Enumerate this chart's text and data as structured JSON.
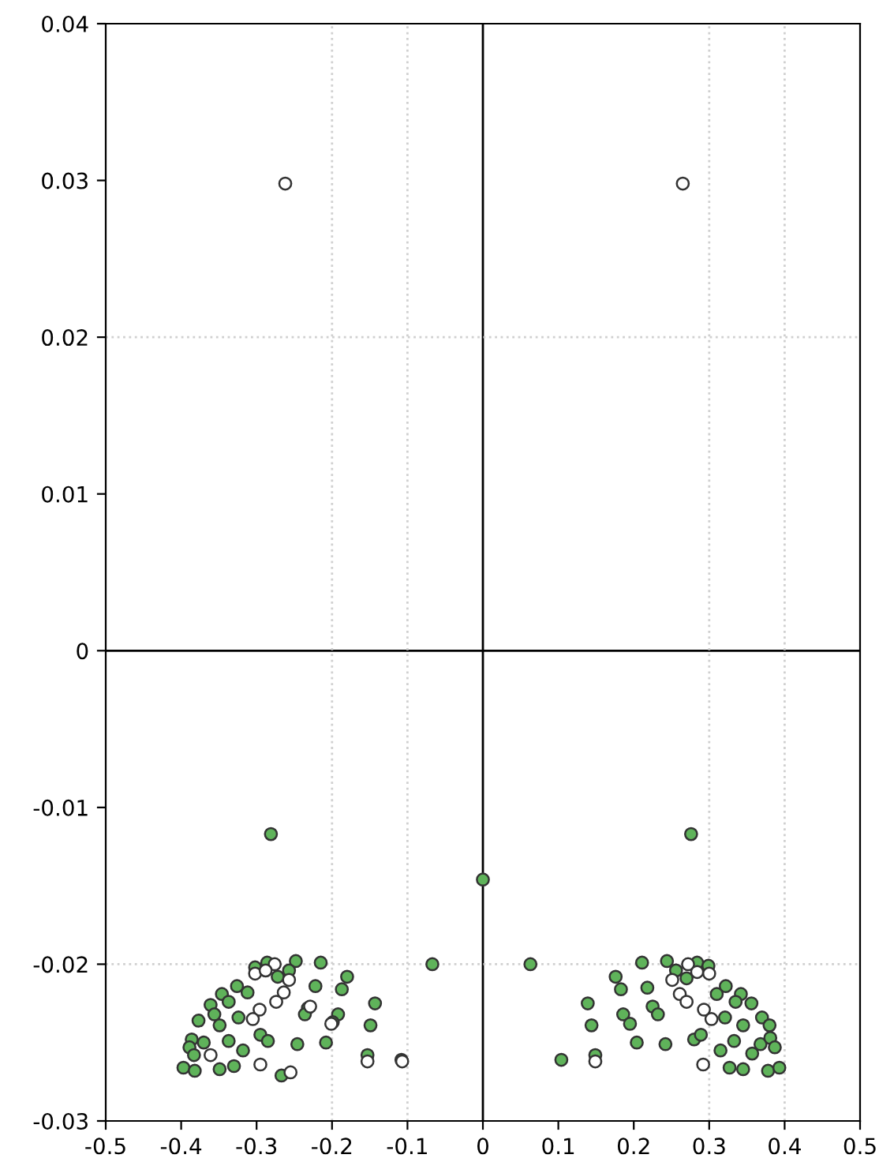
{
  "chart_data": {
    "type": "scatter",
    "marker": "circle",
    "xlim": [
      -0.5,
      0.5
    ],
    "xticks": [
      -0.5,
      -0.4,
      -0.3,
      -0.2,
      -0.1,
      0,
      0.1,
      0.2,
      0.3,
      0.4,
      0.5
    ],
    "ylim": [
      -0.03,
      0.04
    ],
    "yticks": [
      -0.03,
      -0.02,
      -0.01,
      0,
      0.01,
      0.02,
      0.03,
      0.04
    ],
    "ref_lines": [
      {
        "axis": "x",
        "value": 0,
        "color": "#000000",
        "line_style": "solid"
      },
      {
        "axis": "y",
        "value": 0,
        "color": "#000000",
        "line_style": "solid"
      },
      {
        "axis": "x",
        "value": -0.2,
        "color": "#d0d0d0",
        "line_style": "dotted"
      },
      {
        "axis": "x",
        "value": -0.1,
        "color": "#d0d0d0",
        "line_style": "dotted"
      },
      {
        "axis": "x",
        "value": 0.3,
        "color": "#d0d0d0",
        "line_style": "dotted"
      },
      {
        "axis": "x",
        "value": 0.4,
        "color": "#d0d0d0",
        "line_style": "dotted"
      },
      {
        "axis": "y",
        "value": 0.02,
        "color": "#d0d0d0",
        "line_style": "dotted"
      },
      {
        "axis": "y",
        "value": -0.02,
        "color": "#d0d0d0",
        "line_style": "dotted"
      }
    ],
    "series": [
      {
        "color": "#ffffff",
        "x": [
          -0.262,
          0.265,
          -0.302,
          -0.276,
          -0.288,
          -0.257,
          -0.264,
          -0.274,
          -0.296,
          -0.305,
          -0.229,
          -0.201,
          -0.361,
          -0.295,
          -0.255,
          -0.153,
          -0.107,
          0.272,
          0.284,
          0.3,
          0.251,
          0.261,
          0.27,
          0.293,
          0.303,
          0.149,
          0.292
        ],
        "values": [
          0.0298,
          0.0298,
          -0.0206,
          -0.02,
          -0.0204,
          -0.021,
          -0.0218,
          -0.0224,
          -0.0229,
          -0.0235,
          -0.0227,
          -0.0238,
          -0.0258,
          -0.0264,
          -0.0269,
          -0.0262,
          -0.0262,
          -0.02,
          -0.0205,
          -0.0206,
          -0.021,
          -0.0219,
          -0.0224,
          -0.0229,
          -0.0235,
          -0.0262,
          -0.0264
        ]
      },
      {
        "color": "#5fb35a",
        "x": [
          -0.281,
          0.0,
          -0.067,
          -0.215,
          -0.248,
          -0.302,
          -0.286,
          -0.272,
          -0.257,
          -0.18,
          -0.187,
          -0.222,
          -0.143,
          -0.326,
          -0.346,
          -0.337,
          -0.312,
          -0.361,
          -0.377,
          -0.356,
          -0.324,
          -0.232,
          -0.236,
          -0.192,
          -0.199,
          -0.149,
          -0.349,
          -0.386,
          -0.37,
          -0.389,
          -0.337,
          -0.318,
          -0.295,
          -0.285,
          -0.246,
          -0.208,
          -0.383,
          -0.397,
          -0.382,
          -0.349,
          -0.33,
          -0.267,
          -0.153,
          -0.108,
          0.276,
          0.063,
          0.211,
          0.244,
          0.284,
          0.299,
          0.176,
          0.183,
          0.218,
          0.256,
          0.27,
          0.322,
          0.31,
          0.342,
          0.335,
          0.139,
          0.225,
          0.232,
          0.186,
          0.195,
          0.321,
          0.356,
          0.37,
          0.345,
          0.144,
          0.204,
          0.242,
          0.28,
          0.289,
          0.315,
          0.333,
          0.357,
          0.368,
          0.381,
          0.387,
          0.104,
          0.149,
          0.327,
          0.345,
          0.378,
          0.393,
          0.38
        ],
        "values": [
          -0.0117,
          -0.0146,
          -0.02,
          -0.0199,
          -0.0198,
          -0.0202,
          -0.0199,
          -0.0208,
          -0.0204,
          -0.0208,
          -0.0216,
          -0.0214,
          -0.0225,
          -0.0214,
          -0.0219,
          -0.0224,
          -0.0218,
          -0.0226,
          -0.0236,
          -0.0232,
          -0.0234,
          -0.0228,
          -0.0232,
          -0.0232,
          -0.0237,
          -0.0239,
          -0.0239,
          -0.0248,
          -0.025,
          -0.0253,
          -0.0249,
          -0.0255,
          -0.0245,
          -0.0249,
          -0.0251,
          -0.025,
          -0.0258,
          -0.0266,
          -0.0268,
          -0.0267,
          -0.0265,
          -0.0271,
          -0.0258,
          -0.0261,
          -0.0117,
          -0.02,
          -0.0199,
          -0.0198,
          -0.0199,
          -0.0201,
          -0.0208,
          -0.0216,
          -0.0215,
          -0.0204,
          -0.0209,
          -0.0214,
          -0.0219,
          -0.0219,
          -0.0224,
          -0.0225,
          -0.0227,
          -0.0232,
          -0.0232,
          -0.0238,
          -0.0234,
          -0.0225,
          -0.0234,
          -0.0239,
          -0.0239,
          -0.025,
          -0.0251,
          -0.0248,
          -0.0245,
          -0.0255,
          -0.0249,
          -0.0257,
          -0.0251,
          -0.0247,
          -0.0253,
          -0.0261,
          -0.0258,
          -0.0266,
          -0.0267,
          -0.0268,
          -0.0266,
          -0.0239
        ]
      }
    ]
  }
}
